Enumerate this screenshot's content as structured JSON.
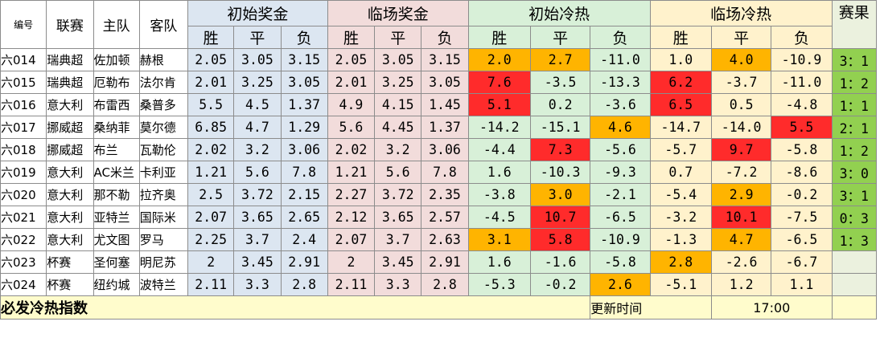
{
  "colors": {
    "initial_odds_bg": "#dce6f1",
    "closing_odds_bg": "#f2dcdb",
    "initial_heat_bg": "#d8f0d8",
    "closing_heat_bg": "#fff2cc",
    "result_bg": "#92d050",
    "result_header_bg": "#ebf1de",
    "footer_bg": "#fffccc",
    "heat_red": "#ff2b2b",
    "heat_orange": "#ffb400"
  },
  "header": {
    "id": "编号",
    "league": "联赛",
    "home": "主队",
    "away": "客队",
    "initial_odds": "初始奖金",
    "closing_odds": "临场奖金",
    "initial_heat": "初始冷热",
    "closing_heat": "临场冷热",
    "result": "赛果",
    "win": "胜",
    "draw": "平",
    "lose": "负"
  },
  "rows": [
    {
      "id": "六014",
      "league": "瑞典超",
      "home": "佐加顿",
      "away": "赫根",
      "io": [
        "2.05",
        "3.05",
        "3.15"
      ],
      "co": [
        "2.05",
        "3.05",
        "3.15"
      ],
      "ih": [
        "2.0",
        "2.7",
        "-11.0"
      ],
      "ch": [
        "1.0",
        "4.0",
        "-10.9"
      ],
      "res": "3：1",
      "ihc": [
        "orange",
        "orange",
        ""
      ],
      "chc": [
        "",
        "orange",
        ""
      ]
    },
    {
      "id": "六015",
      "league": "瑞典超",
      "home": "厄勒布",
      "away": "法尔肯",
      "io": [
        "2.01",
        "3.25",
        "3.05"
      ],
      "co": [
        "2.01",
        "3.25",
        "3.05"
      ],
      "ih": [
        "7.6",
        "-3.5",
        "-13.3"
      ],
      "ch": [
        "6.2",
        "-3.7",
        "-11.0"
      ],
      "res": "1：2",
      "ihc": [
        "red",
        "",
        ""
      ],
      "chc": [
        "red",
        "",
        ""
      ]
    },
    {
      "id": "六016",
      "league": "意大利",
      "home": "布雷西",
      "away": "桑普多",
      "io": [
        "5.5",
        "4.5",
        "1.37"
      ],
      "co": [
        "4.9",
        "4.15",
        "1.45"
      ],
      "ih": [
        "5.1",
        "0.2",
        "-3.6"
      ],
      "ch": [
        "6.5",
        "0.5",
        "-4.8"
      ],
      "res": "1：1",
      "ihc": [
        "red",
        "",
        ""
      ],
      "chc": [
        "red",
        "",
        ""
      ]
    },
    {
      "id": "六017",
      "league": "挪威超",
      "home": "桑纳菲",
      "away": "莫尔德",
      "io": [
        "6.85",
        "4.7",
        "1.29"
      ],
      "co": [
        "5.6",
        "4.45",
        "1.37"
      ],
      "ih": [
        "-14.2",
        "-15.1",
        "4.6"
      ],
      "ch": [
        "-14.7",
        "-14.0",
        "5.5"
      ],
      "res": "2：1",
      "ihc": [
        "",
        "",
        "orange"
      ],
      "chc": [
        "",
        "",
        "red"
      ]
    },
    {
      "id": "六018",
      "league": "挪威超",
      "home": "布兰",
      "away": "瓦勒伦",
      "io": [
        "2.02",
        "3.2",
        "3.06"
      ],
      "co": [
        "2.02",
        "3.2",
        "3.06"
      ],
      "ih": [
        "-4.4",
        "7.3",
        "-5.6"
      ],
      "ch": [
        "-5.7",
        "9.7",
        "-5.8"
      ],
      "res": "1：2",
      "ihc": [
        "",
        "red",
        ""
      ],
      "chc": [
        "",
        "red",
        ""
      ]
    },
    {
      "id": "六019",
      "league": "意大利",
      "home": "AC米兰",
      "away": "卡利亚",
      "io": [
        "1.21",
        "5.6",
        "7.8"
      ],
      "co": [
        "1.21",
        "5.6",
        "7.8"
      ],
      "ih": [
        "1.6",
        "-10.3",
        "-9.3"
      ],
      "ch": [
        "0.7",
        "-7.2",
        "-8.6"
      ],
      "res": "3：0",
      "ihc": [
        "",
        "",
        ""
      ],
      "chc": [
        "",
        "",
        ""
      ]
    },
    {
      "id": "六020",
      "league": "意大利",
      "home": "那不勒",
      "away": "拉齐奥",
      "io": [
        "2.5",
        "3.72",
        "2.15"
      ],
      "co": [
        "2.27",
        "3.72",
        "2.35"
      ],
      "ih": [
        "-3.8",
        "3.0",
        "-2.1"
      ],
      "ch": [
        "-5.4",
        "2.9",
        "-0.2"
      ],
      "res": "3：1",
      "ihc": [
        "",
        "orange",
        ""
      ],
      "chc": [
        "",
        "orange",
        ""
      ]
    },
    {
      "id": "六021",
      "league": "意大利",
      "home": "亚特兰",
      "away": "国际米",
      "io": [
        "2.07",
        "3.65",
        "2.65"
      ],
      "co": [
        "2.12",
        "3.65",
        "2.57"
      ],
      "ih": [
        "-4.5",
        "10.7",
        "-6.5"
      ],
      "ch": [
        "-3.2",
        "10.1",
        "-7.5"
      ],
      "res": "0：3",
      "ihc": [
        "",
        "red",
        ""
      ],
      "chc": [
        "",
        "red",
        ""
      ]
    },
    {
      "id": "六022",
      "league": "意大利",
      "home": "尤文图",
      "away": "罗马",
      "io": [
        "2.25",
        "3.7",
        "2.4"
      ],
      "co": [
        "2.07",
        "3.7",
        "2.63"
      ],
      "ih": [
        "3.1",
        "5.8",
        "-10.9"
      ],
      "ch": [
        "-1.3",
        "4.7",
        "-6.5"
      ],
      "res": "1：3",
      "ihc": [
        "orange",
        "red",
        ""
      ],
      "chc": [
        "",
        "orange",
        ""
      ]
    },
    {
      "id": "六023",
      "league": "杯赛",
      "home": "圣何塞",
      "away": "明尼苏",
      "io": [
        "2",
        "3.45",
        "2.91"
      ],
      "co": [
        "2",
        "3.45",
        "2.91"
      ],
      "ih": [
        "1.6",
        "-1.6",
        "-5.8"
      ],
      "ch": [
        "2.8",
        "-2.6",
        "-6.7"
      ],
      "res": "",
      "ihc": [
        "",
        "",
        ""
      ],
      "chc": [
        "orange",
        "",
        ""
      ]
    },
    {
      "id": "六024",
      "league": "杯赛",
      "home": "纽约城",
      "away": "波特兰",
      "io": [
        "2.11",
        "3.3",
        "2.8"
      ],
      "co": [
        "2.11",
        "3.3",
        "2.8"
      ],
      "ih": [
        "-5.3",
        "-0.2",
        "2.6"
      ],
      "ch": [
        "-5.1",
        "1.2",
        "1.1"
      ],
      "res": "",
      "ihc": [
        "",
        "",
        "orange"
      ],
      "chc": [
        "",
        "",
        ""
      ]
    }
  ],
  "footer": {
    "title": "必发冷热指数",
    "update_label": "更新时间",
    "update_time": "17:00"
  }
}
